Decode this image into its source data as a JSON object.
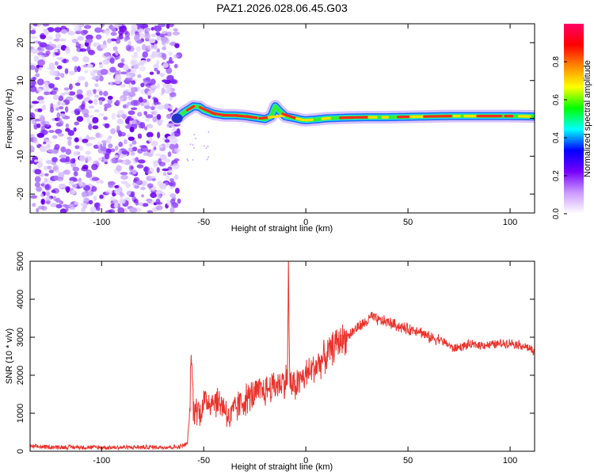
{
  "chart_data": [
    {
      "id": "spectrogram",
      "type": "heatmap",
      "title": "PAZ1.2026.028.06.45.G03",
      "xlabel": "Height of straight line (km)",
      "ylabel": "Frequency (Hz)",
      "xlim": [
        -135,
        112
      ],
      "ylim": [
        -25,
        25
      ],
      "xticks": [
        -100,
        -50,
        0,
        50,
        100
      ],
      "yticks": [
        -20,
        -10,
        0,
        10,
        20
      ],
      "noise_region_x": [
        -135,
        -62
      ],
      "signal_track": {
        "x": [
          -63,
          -60,
          -57,
          -55,
          -52,
          -50,
          -45,
          -40,
          -35,
          -30,
          -25,
          -20,
          -17,
          -15,
          -13,
          -10,
          -7,
          -5,
          -2,
          0,
          5,
          10,
          20,
          30,
          40,
          50,
          60,
          70,
          80,
          90,
          100,
          112
        ],
        "freq": [
          0,
          1.5,
          2.5,
          3.2,
          3.0,
          2.2,
          1.2,
          0.8,
          0.8,
          0.6,
          0.2,
          -0.2,
          0.5,
          3.2,
          2.0,
          0.5,
          0.2,
          0.0,
          -0.4,
          -0.5,
          -0.3,
          0.0,
          0.2,
          0.3,
          0.3,
          0.4,
          0.5,
          0.6,
          0.6,
          0.6,
          0.6,
          0.5
        ]
      },
      "colorbar": {
        "label": "Normalized spectral amplitude",
        "ticks": [
          "0.0",
          "0.2",
          "0.4",
          "0.6",
          "0.8"
        ],
        "tick_values": [
          0.0,
          0.2,
          0.4,
          0.6,
          0.8
        ],
        "range": [
          0,
          1
        ],
        "colors": [
          "#ffffff",
          "#cc99ff",
          "#7700ff",
          "#0000ff",
          "#00ffff",
          "#00ff00",
          "#ffff00",
          "#ff8800",
          "#ff0000",
          "#ff0066"
        ]
      }
    },
    {
      "id": "snr",
      "type": "line",
      "xlabel": "Height of straight line (km)",
      "ylabel": "SNR (10 * v/v)",
      "xlim": [
        -135,
        112
      ],
      "ylim": [
        0,
        5000
      ],
      "xticks": [
        -100,
        -50,
        0,
        50,
        100
      ],
      "yticks": [
        0,
        1000,
        2000,
        3000,
        4000,
        5000
      ],
      "line_color": "#e8342c",
      "series": [
        {
          "name": "SNR",
          "x": [
            -135,
            -120,
            -100,
            -80,
            -62,
            -58,
            -57,
            -56,
            -55,
            -54,
            -52,
            -50,
            -45,
            -40,
            -37,
            -35,
            -30,
            -25,
            -20,
            -15,
            -12,
            -10,
            -9,
            -8.5,
            -8,
            -7,
            -5,
            0,
            5,
            10,
            15,
            20,
            25,
            30,
            32,
            35,
            40,
            45,
            50,
            55,
            60,
            65,
            70,
            72,
            80,
            90,
            100,
            105,
            110,
            112
          ],
          "y": [
            120,
            110,
            100,
            105,
            110,
            200,
            900,
            2600,
            1000,
            1200,
            1000,
            1300,
            1350,
            1200,
            800,
            1100,
            1350,
            1500,
            1600,
            1750,
            1800,
            1850,
            2000,
            5000,
            2000,
            1700,
            1750,
            2000,
            2250,
            2500,
            2850,
            3000,
            3250,
            3400,
            3550,
            3450,
            3400,
            3300,
            3200,
            3200,
            3000,
            2950,
            2800,
            2700,
            2800,
            2800,
            2850,
            2800,
            2700,
            2550
          ]
        }
      ]
    }
  ]
}
